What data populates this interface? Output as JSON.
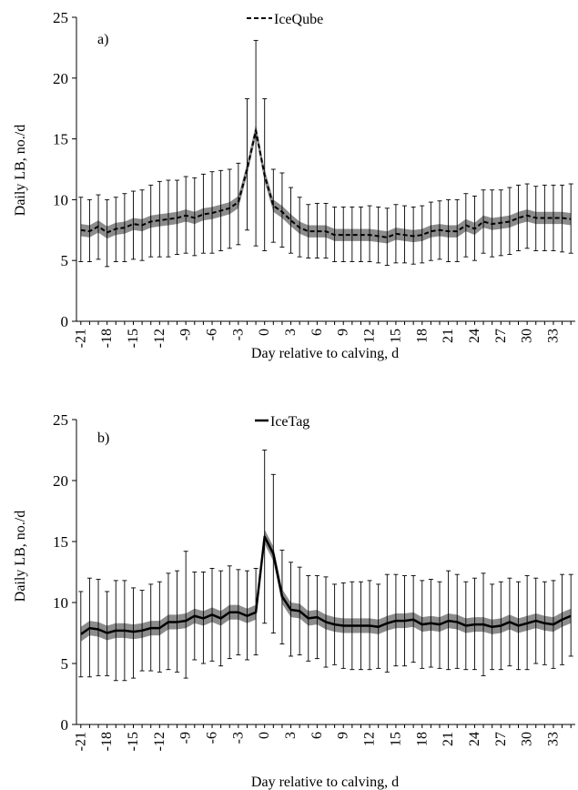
{
  "chart_data": [
    {
      "type": "line",
      "panel_label": "a)",
      "xlabel": "Day relative to calving, d",
      "ylabel": "Daily LB, no./d",
      "ylim": [
        0,
        25
      ],
      "yticks": [
        0,
        5,
        10,
        15,
        20,
        25
      ],
      "x_range": [
        -21,
        35
      ],
      "xticks": [
        -21,
        -18,
        -15,
        -12,
        -9,
        -6,
        -3,
        0,
        3,
        6,
        9,
        12,
        15,
        18,
        21,
        24,
        27,
        30,
        33
      ],
      "legend": {
        "position": "top-center"
      },
      "series": [
        {
          "name": "IceQube",
          "line_style": "dashed",
          "color": "#000000",
          "band_color": "#8c8c8c",
          "x": [
            -21,
            -20,
            -19,
            -18,
            -17,
            -16,
            -15,
            -14,
            -13,
            -12,
            -11,
            -10,
            -9,
            -8,
            -7,
            -6,
            -5,
            -4,
            -3,
            -2,
            -1,
            0,
            1,
            2,
            3,
            4,
            5,
            6,
            7,
            8,
            9,
            10,
            11,
            12,
            13,
            14,
            15,
            16,
            17,
            18,
            19,
            20,
            21,
            22,
            23,
            24,
            25,
            26,
            27,
            28,
            29,
            30,
            31,
            32,
            33,
            34,
            35
          ],
          "mean": [
            7.5,
            7.4,
            7.8,
            7.3,
            7.6,
            7.7,
            8.0,
            7.9,
            8.2,
            8.3,
            8.4,
            8.5,
            8.7,
            8.5,
            8.8,
            8.9,
            9.1,
            9.3,
            9.8,
            12.5,
            15.7,
            12.0,
            9.5,
            9.0,
            8.3,
            7.7,
            7.4,
            7.4,
            7.4,
            7.1,
            7.1,
            7.1,
            7.1,
            7.1,
            7.0,
            6.9,
            7.2,
            7.1,
            7.0,
            7.1,
            7.4,
            7.5,
            7.4,
            7.4,
            7.9,
            7.6,
            8.2,
            8.0,
            8.1,
            8.2,
            8.5,
            8.7,
            8.5,
            8.5,
            8.5,
            8.5,
            8.4
          ],
          "band_halfwidth": 0.5,
          "error_upper": [
            10.2,
            10.0,
            10.4,
            10.0,
            10.2,
            10.5,
            10.7,
            10.8,
            11.2,
            11.5,
            11.6,
            11.6,
            11.9,
            11.8,
            12.1,
            12.3,
            12.4,
            12.5,
            13.0,
            18.3,
            23.1,
            18.3,
            12.5,
            12.2,
            11.0,
            10.2,
            9.6,
            9.7,
            9.7,
            9.4,
            9.4,
            9.4,
            9.4,
            9.5,
            9.4,
            9.3,
            9.6,
            9.5,
            9.4,
            9.5,
            9.8,
            9.9,
            10.0,
            10.0,
            10.5,
            10.3,
            10.8,
            10.8,
            10.8,
            11.0,
            11.2,
            11.3,
            11.1,
            11.2,
            11.2,
            11.2,
            11.3
          ],
          "error_lower": [
            4.9,
            4.9,
            5.1,
            4.5,
            4.9,
            4.9,
            5.1,
            5.0,
            5.3,
            5.3,
            5.3,
            5.5,
            5.6,
            5.4,
            5.6,
            5.6,
            5.8,
            6.0,
            6.3,
            7.5,
            6.2,
            5.8,
            6.5,
            6.1,
            5.6,
            5.3,
            5.2,
            5.2,
            5.2,
            4.9,
            4.9,
            4.9,
            4.9,
            4.9,
            4.8,
            4.6,
            4.8,
            4.8,
            4.7,
            4.8,
            5.0,
            5.1,
            4.9,
            4.9,
            5.3,
            5.0,
            5.6,
            5.3,
            5.4,
            5.5,
            5.8,
            6.0,
            5.8,
            5.8,
            5.8,
            5.7,
            5.6
          ]
        }
      ]
    },
    {
      "type": "line",
      "panel_label": "b)",
      "xlabel": "Day relative to calving, d",
      "ylabel": "Daily LB, no./d",
      "ylim": [
        0,
        25
      ],
      "yticks": [
        0,
        5,
        10,
        15,
        20,
        25
      ],
      "x_range": [
        -21,
        35
      ],
      "xticks": [
        -21,
        -18,
        -15,
        -12,
        -9,
        -6,
        -3,
        0,
        3,
        6,
        9,
        12,
        15,
        18,
        21,
        24,
        27,
        30,
        33
      ],
      "legend": {
        "position": "top-center"
      },
      "series": [
        {
          "name": "IceTag",
          "line_style": "solid",
          "color": "#000000",
          "band_color": "#8c8c8c",
          "x": [
            -21,
            -20,
            -19,
            -18,
            -17,
            -16,
            -15,
            -14,
            -13,
            -12,
            -11,
            -10,
            -9,
            -8,
            -7,
            -6,
            -5,
            -4,
            -3,
            -2,
            -1,
            0,
            1,
            2,
            3,
            4,
            5,
            6,
            7,
            8,
            9,
            10,
            11,
            12,
            13,
            14,
            15,
            16,
            17,
            18,
            19,
            20,
            21,
            22,
            23,
            24,
            25,
            26,
            27,
            28,
            29,
            30,
            31,
            32,
            33,
            34,
            35
          ],
          "mean": [
            7.4,
            7.9,
            7.8,
            7.5,
            7.7,
            7.7,
            7.6,
            7.7,
            7.9,
            7.9,
            8.4,
            8.4,
            8.5,
            8.9,
            8.7,
            9.0,
            8.7,
            9.2,
            9.2,
            8.9,
            9.2,
            15.4,
            14.0,
            10.5,
            9.4,
            9.3,
            8.7,
            8.8,
            8.4,
            8.2,
            8.1,
            8.1,
            8.1,
            8.1,
            8.0,
            8.3,
            8.5,
            8.5,
            8.6,
            8.2,
            8.3,
            8.2,
            8.5,
            8.4,
            8.1,
            8.2,
            8.2,
            8.0,
            8.1,
            8.4,
            8.1,
            8.3,
            8.5,
            8.3,
            8.2,
            8.6,
            8.9
          ],
          "band_halfwidth": 0.6,
          "error_upper": [
            10.9,
            12.0,
            11.9,
            10.9,
            11.8,
            11.8,
            11.2,
            11.0,
            11.5,
            11.7,
            12.4,
            12.6,
            14.2,
            12.5,
            12.5,
            12.8,
            12.6,
            13.0,
            12.7,
            12.6,
            12.8,
            22.5,
            20.5,
            14.3,
            13.3,
            12.9,
            12.2,
            12.2,
            12.1,
            11.5,
            11.6,
            11.7,
            11.7,
            11.8,
            11.5,
            12.3,
            12.3,
            12.2,
            12.2,
            11.8,
            11.9,
            11.7,
            12.6,
            12.3,
            11.7,
            12.0,
            12.4,
            11.5,
            11.7,
            12.0,
            11.7,
            12.2,
            12.0,
            11.7,
            11.8,
            12.3,
            12.3
          ],
          "error_lower": [
            3.9,
            3.9,
            4.0,
            4.0,
            3.6,
            3.6,
            3.8,
            4.4,
            4.4,
            4.3,
            4.5,
            4.3,
            3.8,
            5.3,
            5.0,
            5.2,
            4.8,
            5.4,
            5.7,
            5.3,
            5.7,
            8.3,
            7.5,
            6.6,
            5.6,
            5.7,
            5.2,
            5.4,
            4.7,
            4.9,
            4.6,
            4.5,
            4.5,
            4.5,
            4.6,
            4.3,
            4.8,
            4.8,
            5.1,
            4.6,
            4.7,
            4.6,
            4.5,
            4.6,
            4.5,
            4.5,
            4.0,
            4.5,
            4.5,
            4.8,
            4.5,
            4.5,
            5.0,
            4.9,
            4.6,
            4.9,
            5.6
          ]
        }
      ]
    }
  ]
}
